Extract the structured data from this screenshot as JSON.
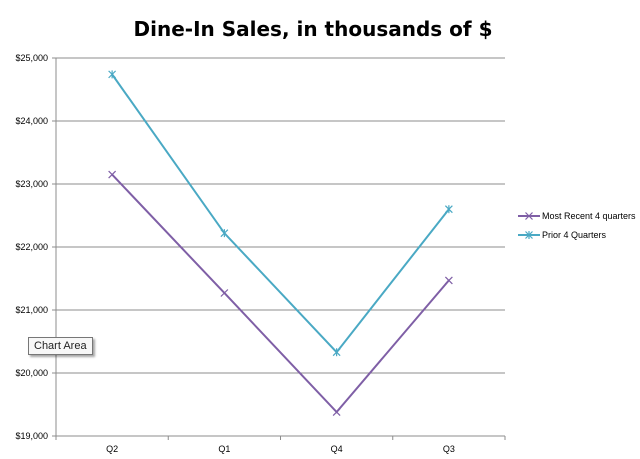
{
  "chart_data": {
    "type": "line",
    "title": "Dine-In Sales, in thousands  of $",
    "categories": [
      "Q2",
      "Q1",
      "Q4",
      "Q3"
    ],
    "ylim": [
      19000,
      25000
    ],
    "yticks": [
      19000,
      20000,
      21000,
      22000,
      23000,
      24000,
      25000
    ],
    "ytick_labels": [
      "$19,000",
      "$20,000",
      "$21,000",
      "$22,000",
      "$23,000",
      "$24,000",
      "$25,000"
    ],
    "grid": true,
    "legend_position": "right",
    "series": [
      {
        "name": "Most Recent  4 quarters",
        "values": [
          23150,
          21270,
          19380,
          21470
        ],
        "color": "#7f5fa6",
        "marker": "x"
      },
      {
        "name": "Prior 4 Quarters",
        "values": [
          24740,
          22220,
          20330,
          22600
        ],
        "color": "#4aa9c4",
        "marker": "asterisk"
      }
    ]
  },
  "tooltip": {
    "text": "Chart Area"
  }
}
